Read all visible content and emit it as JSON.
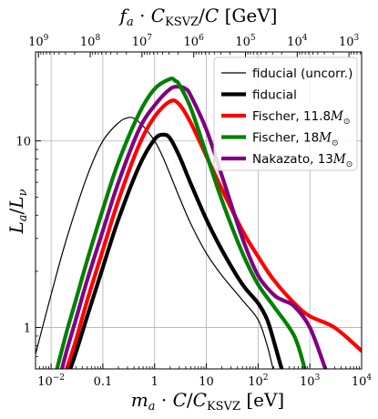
{
  "chart_data": {
    "type": "line",
    "title": "",
    "xlabel": "m_a · C/C_KSVZ  [eV]",
    "ylabel": "L_a/L_ν",
    "top_xlabel": "f_a · C_KSVZ/C  [GeV]",
    "x_scale": "log",
    "y_scale": "log",
    "xlim": [
      0.005,
      10000
    ],
    "ylim": [
      0.6,
      30
    ],
    "grid": true,
    "legend_position": "top-right",
    "x_ticks": [
      {
        "value": 0.01,
        "label": "10^-2"
      },
      {
        "value": 0.1,
        "label": "0.1"
      },
      {
        "value": 1,
        "label": "1"
      },
      {
        "value": 10,
        "label": "10"
      },
      {
        "value": 100,
        "label": "10^2"
      },
      {
        "value": 1000,
        "label": "10^3"
      },
      {
        "value": 10000,
        "label": "10^4"
      }
    ],
    "y_ticks": [
      {
        "value": 1,
        "label": "1"
      },
      {
        "value": 10,
        "label": "10"
      }
    ],
    "top_ticks": [
      {
        "value": 1000000000.0,
        "label": "10^9"
      },
      {
        "value": 100000000.0,
        "label": "10^8"
      },
      {
        "value": 10000000.0,
        "label": "10^7"
      },
      {
        "value": 1000000.0,
        "label": "10^6"
      },
      {
        "value": 100000.0,
        "label": "10^5"
      },
      {
        "value": 10000.0,
        "label": "10^4"
      },
      {
        "value": 1000.0,
        "label": "10^3"
      }
    ],
    "series": [
      {
        "name": "fiducial (uncorr.)",
        "color": "#000000",
        "style": "thin",
        "x": [
          0.005,
          0.01,
          0.02,
          0.05,
          0.1,
          0.2,
          0.3,
          0.4,
          0.6,
          1,
          1.5,
          3,
          5,
          10,
          20,
          50,
          100,
          150,
          200
        ],
        "y": [
          0.72,
          1.5,
          3.0,
          6.5,
          10.0,
          12.5,
          13.3,
          13.2,
          12.0,
          10.0,
          8.0,
          5.0,
          3.6,
          2.5,
          1.9,
          1.4,
          1.1,
          0.8,
          0.58
        ]
      },
      {
        "name": "fiducial",
        "color": "#000000",
        "style": "thick",
        "x": [
          0.02,
          0.03,
          0.05,
          0.1,
          0.2,
          0.5,
          1,
          1.5,
          2,
          3,
          5,
          10,
          20,
          50,
          100,
          150,
          200,
          300
        ],
        "y": [
          0.53,
          0.73,
          1.15,
          2.1,
          3.8,
          7.3,
          10.2,
          10.8,
          10.3,
          8.3,
          5.9,
          3.8,
          2.6,
          1.7,
          1.35,
          1.1,
          0.85,
          0.57
        ]
      },
      {
        "name": "Fischer, 11.8M_⊙",
        "color": "#ff0000",
        "style": "thick",
        "x": [
          0.02,
          0.03,
          0.05,
          0.1,
          0.2,
          0.5,
          1,
          2,
          3,
          5,
          10,
          20,
          50,
          100,
          200,
          500,
          1000,
          3000,
          10000
        ],
        "y": [
          0.6,
          0.85,
          1.4,
          2.6,
          4.8,
          9.5,
          13.5,
          16.3,
          15.7,
          12.5,
          8.3,
          5.5,
          3.3,
          2.4,
          1.8,
          1.35,
          1.15,
          1.0,
          0.75
        ]
      },
      {
        "name": "Fischer, 18M_⊙",
        "color": "#008000",
        "style": "thick",
        "x": [
          0.013,
          0.02,
          0.03,
          0.05,
          0.1,
          0.2,
          0.5,
          1,
          2,
          2.5,
          3,
          5,
          10,
          20,
          50,
          100,
          200,
          500,
          800
        ],
        "y": [
          0.6,
          0.95,
          1.4,
          2.3,
          4.3,
          7.7,
          14.0,
          19.0,
          21.5,
          21.0,
          20.0,
          15.0,
          8.5,
          4.8,
          2.5,
          1.7,
          1.3,
          0.9,
          0.6
        ]
      },
      {
        "name": "Nakazato, 13M_⊙",
        "color": "#800080",
        "style": "thick",
        "x": [
          0.015,
          0.02,
          0.03,
          0.05,
          0.1,
          0.2,
          0.5,
          1,
          2,
          3,
          4,
          5,
          10,
          20,
          50,
          100,
          200,
          300,
          500,
          1000,
          2000
        ],
        "y": [
          0.55,
          0.75,
          1.1,
          1.8,
          3.3,
          6.0,
          11.5,
          15.5,
          19.0,
          19.5,
          19.0,
          17.5,
          11.5,
          6.5,
          3.0,
          1.9,
          1.5,
          1.4,
          1.3,
          1.0,
          0.6
        ]
      }
    ]
  }
}
